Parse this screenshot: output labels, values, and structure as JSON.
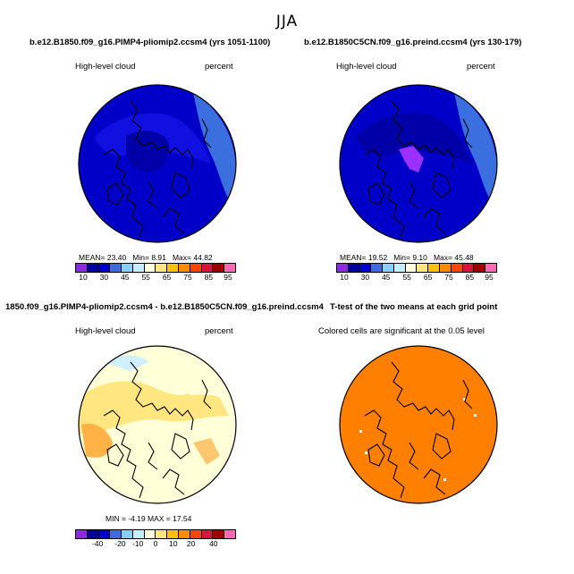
{
  "season": "JJA",
  "panels": [
    {
      "title": "b.e12.B1850.f09_g16.PIMP4-pliomip2.ccsm4 (yrs 1051-1100)",
      "left_label": "High-level cloud",
      "right_label": "percent",
      "stats": {
        "mean_label": "MEAN=",
        "mean": "23.40",
        "min_label": "Min=",
        "min": "8.91",
        "max_label": "Max=",
        "max": "44.82"
      },
      "ticks": [
        "10",
        "30",
        "45",
        "55",
        "65",
        "75",
        "85",
        "95"
      ]
    },
    {
      "title": "b.e12.B1850C5CN.f09_g16.preind.ccsm4 (yrs 130-179)",
      "left_label": "High-level cloud",
      "right_label": "percent",
      "stats": {
        "mean_label": "MEAN=",
        "mean": "19.52",
        "min_label": "Min=",
        "min": "9.10",
        "max_label": "Max=",
        "max": "45.48"
      },
      "ticks": [
        "10",
        "30",
        "45",
        "55",
        "65",
        "75",
        "85",
        "95"
      ]
    },
    {
      "title": "1850.f09_g16.PIMP4-pliomip2.ccsm4 - b.e12.B1850C5CN.f09_g16.preind.ccsm4",
      "left_label": "High-level cloud",
      "right_label": "percent",
      "stats": {
        "text": "MIN =  -4.19  MAX =  17.54"
      },
      "ticks": [
        "-40",
        "-20",
        "-10",
        "0",
        "10",
        "20",
        "40"
      ]
    },
    {
      "title": "T-test of the two means at each grid point",
      "left_label": "Colored cells are significant at the 0.05 level",
      "right_label": ""
    }
  ],
  "colors": {
    "abs_scale": [
      "#8a2be2",
      "#0000a0",
      "#0000d0",
      "#4169e1",
      "#87cefa",
      "#c6ecff",
      "#ffffe0",
      "#ffe680",
      "#ffc107",
      "#ff8c00",
      "#ff4500",
      "#dc143c",
      "#a00000",
      "#ff69b4"
    ],
    "diff_scale": [
      "#8a2be2",
      "#0000a0",
      "#0000d0",
      "#4169e1",
      "#87cefa",
      "#c6ecff",
      "#ffffe0",
      "#ffe680",
      "#ffc107",
      "#ff8c00",
      "#ff4500",
      "#dc143c",
      "#a00000",
      "#ff69b4"
    ],
    "sig_fill": "#ff7f00"
  }
}
